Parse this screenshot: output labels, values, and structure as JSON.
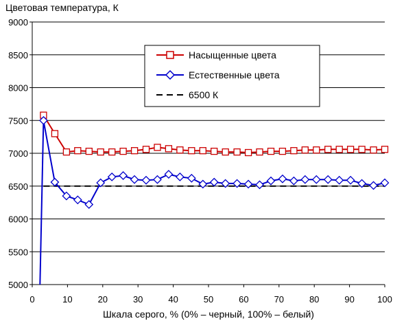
{
  "chart_data": {
    "type": "line",
    "ylabel": "Цветовая температура, К",
    "xlabel": "Шкала серого, % (0% – черный, 100% – белый)",
    "xlim": [
      0,
      100
    ],
    "ylim": [
      5000,
      9000
    ],
    "x_ticks": [
      0,
      10,
      20,
      30,
      40,
      50,
      60,
      70,
      80,
      90,
      100
    ],
    "y_ticks": [
      5000,
      5500,
      6000,
      6500,
      7000,
      7500,
      8000,
      8500,
      9000
    ],
    "grid": "horizontal",
    "legend_position": "top-right",
    "series": [
      {
        "name": "Насыщенные цвета",
        "color": "#cc0000",
        "marker": "square",
        "x": [
          3.2,
          6.4,
          9.7,
          12.9,
          16.1,
          19.4,
          22.6,
          25.8,
          29.0,
          32.3,
          35.5,
          38.7,
          41.9,
          45.2,
          48.4,
          51.6,
          54.8,
          58.1,
          61.3,
          64.5,
          67.7,
          71.0,
          74.2,
          77.4,
          80.6,
          83.9,
          87.1,
          90.3,
          93.5,
          96.8,
          100
        ],
        "y": [
          7580,
          7300,
          7020,
          7040,
          7030,
          7020,
          7020,
          7030,
          7040,
          7060,
          7090,
          7070,
          7050,
          7040,
          7040,
          7030,
          7020,
          7020,
          7010,
          7020,
          7030,
          7030,
          7040,
          7050,
          7050,
          7060,
          7060,
          7060,
          7060,
          7050,
          7060
        ]
      },
      {
        "name": "Естественные цвета",
        "color": "#0000cc",
        "marker": "diamond",
        "x": [
          2.2,
          3.2,
          6.4,
          9.7,
          12.9,
          16.1,
          19.4,
          22.6,
          25.8,
          29.0,
          32.3,
          35.5,
          38.7,
          41.9,
          45.2,
          48.4,
          51.6,
          54.8,
          58.1,
          61.3,
          64.5,
          67.7,
          71.0,
          74.2,
          77.4,
          80.6,
          83.9,
          87.1,
          90.3,
          93.5,
          96.8,
          100
        ],
        "y": [
          5000,
          7500,
          6560,
          6350,
          6290,
          6220,
          6550,
          6640,
          6660,
          6600,
          6590,
          6600,
          6680,
          6640,
          6620,
          6530,
          6560,
          6540,
          6540,
          6530,
          6520,
          6580,
          6610,
          6580,
          6600,
          6600,
          6600,
          6590,
          6590,
          6540,
          6510,
          6550
        ]
      },
      {
        "name": "6500 К",
        "color": "#000000",
        "marker": "none",
        "dashed": true,
        "x": [
          3.2,
          100
        ],
        "y": [
          6500,
          6500
        ]
      }
    ]
  }
}
